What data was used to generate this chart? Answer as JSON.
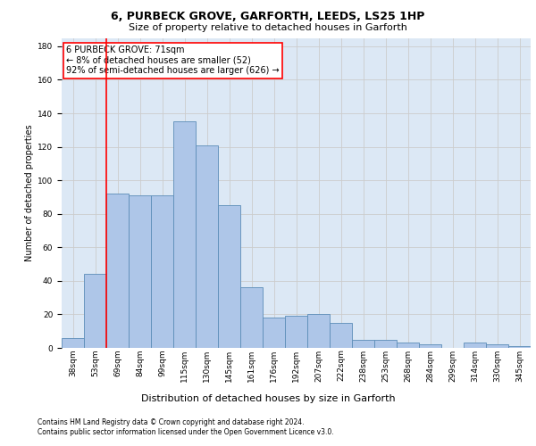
{
  "title": "6, PURBECK GROVE, GARFORTH, LEEDS, LS25 1HP",
  "subtitle": "Size of property relative to detached houses in Garforth",
  "xlabel": "Distribution of detached houses by size in Garforth",
  "ylabel": "Number of detached properties",
  "categories": [
    "38sqm",
    "53sqm",
    "69sqm",
    "84sqm",
    "99sqm",
    "115sqm",
    "130sqm",
    "145sqm",
    "161sqm",
    "176sqm",
    "192sqm",
    "207sqm",
    "222sqm",
    "238sqm",
    "253sqm",
    "268sqm",
    "284sqm",
    "299sqm",
    "314sqm",
    "330sqm",
    "345sqm"
  ],
  "values": [
    6,
    44,
    92,
    91,
    91,
    135,
    121,
    85,
    36,
    18,
    19,
    20,
    15,
    5,
    5,
    3,
    2,
    0,
    3,
    2,
    1
  ],
  "bar_color": "#aec6e8",
  "bar_edge_color": "#5b8db8",
  "grid_color": "#cccccc",
  "redline_x": 1.5,
  "annotation_line1": "6 PURBECK GROVE: 71sqm",
  "annotation_line2": "← 8% of detached houses are smaller (52)",
  "annotation_line3": "92% of semi-detached houses are larger (626) →",
  "annotation_box_color": "white",
  "annotation_box_edge_color": "red",
  "ylim": [
    0,
    185
  ],
  "yticks": [
    0,
    20,
    40,
    60,
    80,
    100,
    120,
    140,
    160,
    180
  ],
  "footer_line1": "Contains HM Land Registry data © Crown copyright and database right 2024.",
  "footer_line2": "Contains public sector information licensed under the Open Government Licence v3.0.",
  "background_color": "#dce8f5",
  "fig_background_color": "white",
  "title_fontsize": 9,
  "subtitle_fontsize": 8,
  "ylabel_fontsize": 7,
  "xlabel_fontsize": 8,
  "tick_fontsize": 6.5,
  "annotation_fontsize": 7,
  "footer_fontsize": 5.5
}
